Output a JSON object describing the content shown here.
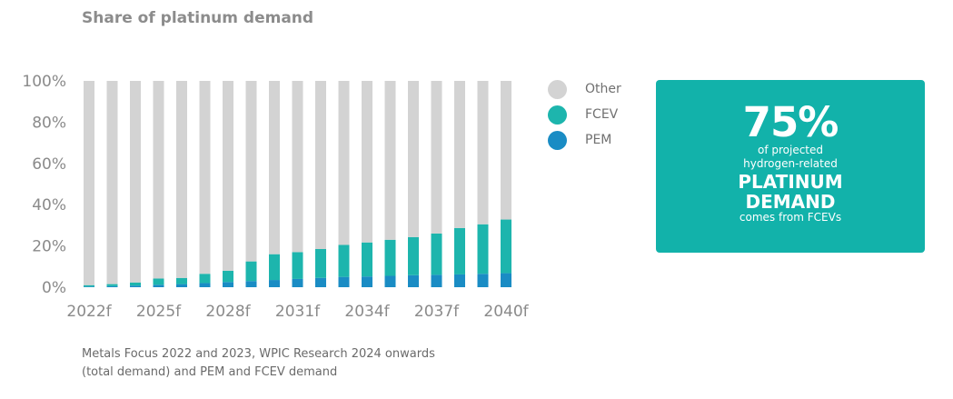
{
  "title": "Share of platinum demand",
  "chart_data": {
    "type": "bar",
    "stacked": true,
    "categories": [
      "2022f",
      "2023f",
      "2024f",
      "2025f",
      "2026f",
      "2027f",
      "2028f",
      "2029f",
      "2030f",
      "2031f",
      "2032f",
      "2033f",
      "2034f",
      "2035f",
      "2036f",
      "2037f",
      "2038f",
      "2039f",
      "2040f"
    ],
    "x_tick_labels": [
      "2022f",
      "2025f",
      "2028f",
      "2031f",
      "2034f",
      "2037f",
      "2040f"
    ],
    "y_tick_labels": [
      "100%",
      "80%",
      "60%",
      "40%",
      "20%",
      "0%"
    ],
    "ylim": [
      0,
      100
    ],
    "series": [
      {
        "name": "PEM",
        "color": "#1a8cc4",
        "values": [
          0.3,
          0.5,
          0.8,
          1.2,
          1.5,
          2.0,
          2.5,
          3.0,
          3.5,
          4.0,
          4.5,
          5.0,
          5.2,
          5.5,
          5.8,
          6.0,
          6.2,
          6.5,
          6.8
        ]
      },
      {
        "name": "FCEV",
        "color": "#1db5ad",
        "values": [
          0.7,
          1.0,
          1.5,
          3.0,
          3.0,
          4.5,
          5.5,
          9.5,
          12.5,
          13.0,
          14.0,
          15.5,
          16.5,
          17.5,
          18.5,
          20.0,
          22.5,
          24.0,
          26.0
        ]
      },
      {
        "name": "Other",
        "color": "#d3d3d3",
        "values": [
          99.0,
          98.5,
          97.7,
          95.8,
          95.5,
          93.5,
          92.0,
          87.5,
          84.0,
          83.0,
          81.5,
          79.5,
          78.3,
          77.0,
          75.7,
          74.0,
          71.3,
          69.5,
          67.2
        ]
      }
    ]
  },
  "legend": [
    {
      "label": "Other",
      "color": "#d3d3d3"
    },
    {
      "label": "FCEV",
      "color": "#1db5ad"
    },
    {
      "label": "PEM",
      "color": "#1a8cc4"
    }
  ],
  "callout": {
    "big": "75%",
    "line1": "of projected",
    "line2": "hydrogen-related",
    "line3": "PLATINUM",
    "line4": "DEMAND",
    "line5": "comes from FCEVs"
  },
  "source": {
    "line1": "Metals Focus 2022 and 2023, WPIC Research 2024 onwards",
    "line2": "(total demand) and PEM and FCEV demand"
  }
}
